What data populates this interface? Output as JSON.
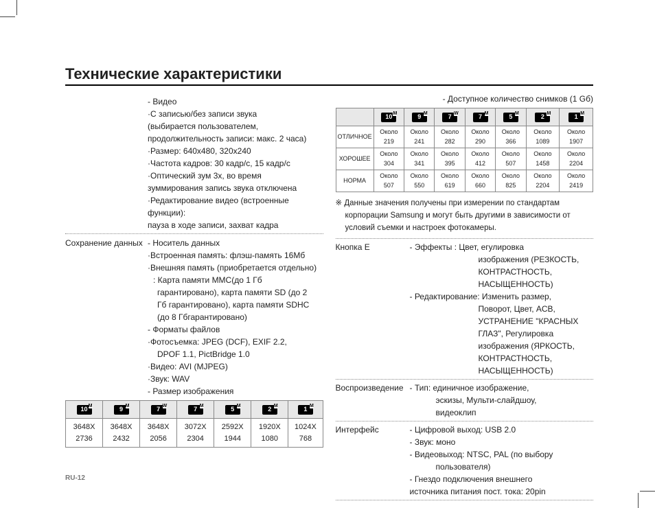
{
  "title": "Технические характеристики",
  "pageNumber": "RU-12",
  "icons": {
    "10m": {
      "text": "10",
      "sup": "M"
    },
    "9m": {
      "text": "9",
      "sup": "M"
    },
    "7w": {
      "text": "7",
      "sup": "W"
    },
    "7m": {
      "text": "7",
      "sup": "M"
    },
    "5m": {
      "text": "5",
      "sup": "M"
    },
    "2m": {
      "text": "2",
      "sup": "M"
    },
    "1m": {
      "text": "1",
      "sup": "M"
    }
  },
  "leftCol": {
    "video": {
      "lines": [
        "- Видео",
        "·С записью/без записи звука",
        " (выбирается пользователем,",
        " продолжительность записи: макс. 2 часа)",
        "·Размер: 640x480, 320x240",
        "·Частота кадров: 30 кадр/с, 15 кадр/с",
        "·Оптический зум 3x, во время",
        " зуммирования запись звука отключена",
        "·Редактирование видео (встроенные функции):",
        " пауза в ходе записи, захват кадра"
      ]
    },
    "storage": {
      "label": "Сохранение данных",
      "lines": [
        "- Носитель данных",
        "·Встроенная память: флэш-память 16Мб",
        "·Внешняя память (приобретается отдельно)",
        " : Карта памяти MMC(до 1 Гб",
        "  гарантировано),  карта памяти SD (до 2",
        "  Гб гарантировано), карта памяти SDHC",
        "  (до 8 Гбгарантировано)",
        "- Форматы файлов",
        "·Фотосъемка: JPEG (DCF), EXIF 2.2,",
        "                      DPOF 1.1, PictBridge 1.0",
        "·Видео: AVI (MJPEG)",
        "·Звук: WAV",
        "- Размер изображения"
      ]
    },
    "sizeTable": {
      "headers": [
        "10m",
        "9m",
        "7w",
        "7m",
        "5m",
        "2m",
        "1m"
      ],
      "row": [
        "3648X 2736",
        "3648X 2432",
        "3648X 2056",
        "3072X 2304",
        "2592X 1944",
        "1920X 1080",
        "1024X 768"
      ]
    }
  },
  "rightCol": {
    "caption": "- Доступное количество снимков (1 Gб)",
    "shotsTable": {
      "headers": [
        "10m",
        "9m",
        "7w",
        "7m",
        "5m",
        "2m",
        "1m"
      ],
      "rows": [
        {
          "label": "ОТЛИЧНОЕ",
          "cells": [
            "Около 219",
            "Около 241",
            "Около 282",
            "Около 290",
            "Около 366",
            "Около 1089",
            "Около 1907"
          ]
        },
        {
          "label": "ХОРОШЕЕ",
          "cells": [
            "Около 304",
            "Около 341",
            "Около 395",
            "Около 412",
            "Около 507",
            "Около 1458",
            "Около 2204"
          ]
        },
        {
          "label": "НОРМА",
          "cells": [
            "Около 507",
            "Около 550",
            "Около 619",
            "Около 660",
            "Около 825",
            "Около 2204",
            "Около 2419"
          ]
        }
      ]
    },
    "note": "※ Данные значения получены при измерении по стандартам корпорации Samsung и могут быть другими в зависимости от условий съемки и настроек фотокамеры.",
    "specs": [
      {
        "label": "Кнопка E",
        "blocks": [
          {
            "first": "- Эффекты : Цвет, егулировка",
            "deep": [
              "изображения (РЕЗКОСТЬ,",
              "КОНТРАСТНОСТЬ,",
              "НАСЫЩЕННОСТЬ)"
            ]
          },
          {
            "first": "- Редактирование: Изменить размер,",
            "deep": [
              "Поворот, Цвет, ACB,",
              "УСТРАНЕНИЕ \"КРАСНЫХ",
              "ГЛАЗ\", Регулировка",
              "изображения (ЯРКОСТЬ,",
              "КОНТРАСТНОСТЬ,",
              "НАСЫЩЕННОСТЬ)"
            ]
          }
        ]
      },
      {
        "label": "Воспроизведение",
        "blocks": [
          {
            "first": "- Тип: единичное изображение,",
            "deep2": [
              "эскизы, Мульти-слайдшоу,",
              "видеоклип"
            ]
          }
        ]
      },
      {
        "label": "Интерфейс",
        "blocks": [
          {
            "first": "- Цифровой выход: USB 2.0"
          },
          {
            "first": "- Звук: моно"
          },
          {
            "first": "- Видеовыход: NTSC, PAL (по выбору",
            "deep2": [
              "                пользователя)"
            ]
          },
          {
            "first": "- Гнездо подключения внешнего",
            "plain": [
              "  источника питания пост. тока: 20pin"
            ]
          }
        ]
      }
    ]
  }
}
